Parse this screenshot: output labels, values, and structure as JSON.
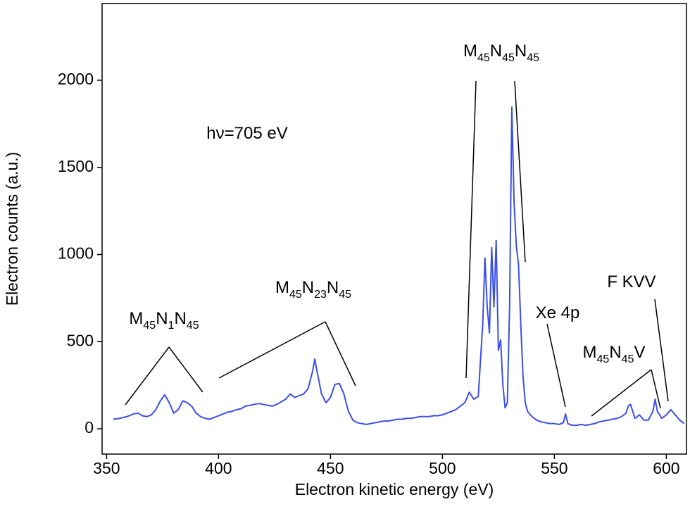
{
  "chart_data": {
    "type": "line",
    "xlabel": "Electron kinetic energy (eV)",
    "ylabel": "Electron counts (a.u.)",
    "color": "#3b4fe6",
    "xlim": [
      348,
      609
    ],
    "xticks": [
      350,
      400,
      450,
      500,
      550,
      600
    ],
    "ylim": [
      -145,
      2440
    ],
    "yticks": [
      0,
      500,
      1000,
      1500,
      2000
    ],
    "grid": false,
    "x": [
      353,
      356,
      359,
      362,
      364,
      366,
      368,
      370,
      372,
      374,
      376,
      378,
      380,
      382,
      384,
      386,
      388,
      390,
      392,
      394,
      396,
      398,
      400,
      402,
      404,
      406,
      408,
      410,
      412,
      414,
      416,
      418,
      420,
      422,
      424,
      426,
      428,
      430,
      432,
      434,
      436,
      438,
      440,
      442,
      443,
      444,
      446,
      448,
      450,
      452,
      454,
      456,
      458,
      460,
      462,
      464,
      466,
      468,
      470,
      472,
      474,
      476,
      478,
      480,
      482,
      484,
      486,
      488,
      490,
      492,
      494,
      496,
      498,
      500,
      502,
      504,
      506,
      508,
      510,
      512,
      514,
      516,
      518,
      519,
      520,
      521,
      522,
      523,
      524,
      525,
      526,
      527,
      528,
      529,
      530,
      531,
      532,
      533,
      534,
      535,
      536,
      537,
      538,
      540,
      542,
      544,
      546,
      548,
      550,
      552,
      554,
      555,
      556,
      558,
      560,
      562,
      564,
      566,
      568,
      570,
      572,
      574,
      576,
      578,
      580,
      582,
      583,
      584,
      585,
      586,
      588,
      590,
      592,
      594,
      595,
      596,
      598,
      600,
      602,
      604,
      606,
      608
    ],
    "values": [
      55,
      60,
      70,
      85,
      90,
      75,
      70,
      80,
      110,
      160,
      195,
      150,
      90,
      110,
      160,
      150,
      130,
      90,
      70,
      60,
      55,
      65,
      75,
      85,
      95,
      100,
      110,
      115,
      130,
      135,
      140,
      145,
      140,
      135,
      130,
      140,
      155,
      170,
      200,
      180,
      190,
      200,
      230,
      330,
      400,
      330,
      200,
      150,
      180,
      255,
      260,
      200,
      100,
      50,
      35,
      30,
      25,
      30,
      35,
      40,
      45,
      45,
      50,
      55,
      55,
      60,
      60,
      65,
      70,
      70,
      70,
      75,
      75,
      80,
      90,
      100,
      110,
      130,
      150,
      210,
      170,
      185,
      600,
      980,
      700,
      550,
      1040,
      700,
      1080,
      450,
      510,
      250,
      120,
      150,
      700,
      1845,
      1300,
      1050,
      940,
      600,
      300,
      150,
      100,
      70,
      50,
      40,
      35,
      30,
      30,
      25,
      35,
      85,
      30,
      20,
      20,
      25,
      20,
      25,
      30,
      40,
      45,
      50,
      55,
      60,
      70,
      90,
      130,
      140,
      100,
      60,
      80,
      50,
      50,
      100,
      170,
      100,
      60,
      80,
      110,
      80,
      50,
      30
    ],
    "annotations": [
      {
        "text": [
          "hν=705 eV"
        ]
      },
      {
        "text": [
          "M",
          "45",
          "N",
          "1",
          "N",
          "45"
        ]
      },
      {
        "text": [
          "M",
          "45",
          "N",
          "23",
          "N",
          "45"
        ]
      },
      {
        "text": [
          "M",
          "45",
          "N",
          "45",
          "N",
          "45"
        ]
      },
      {
        "text": [
          "Xe 4p"
        ]
      },
      {
        "text": [
          "M",
          "45",
          "N",
          "45",
          "V"
        ]
      },
      {
        "text": [
          "F KVV"
        ]
      }
    ]
  }
}
